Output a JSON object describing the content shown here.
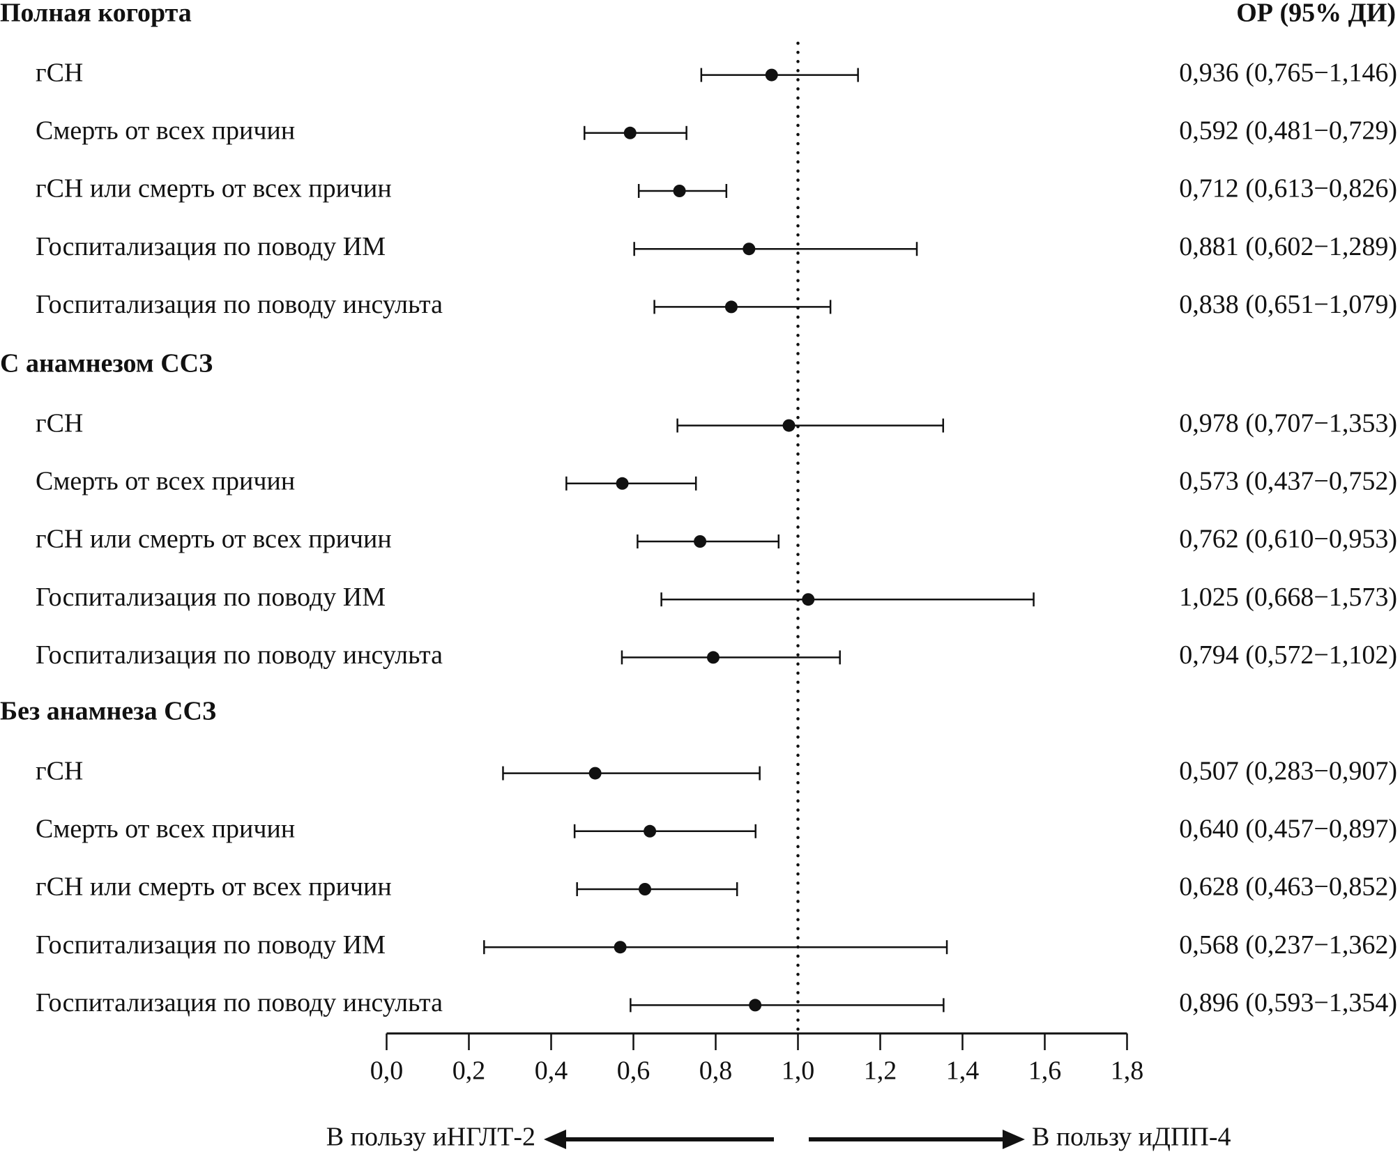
{
  "chart_data": {
    "type": "forest",
    "header_right": "ОР (95% ДИ)",
    "reference_line": 1.0,
    "xlim": [
      0.0,
      1.8
    ],
    "x_ticks": [
      "0,0",
      "0,2",
      "0,4",
      "0,6",
      "0,8",
      "1,0",
      "1,2",
      "1,4",
      "1,6",
      "1,8"
    ],
    "x_tick_values": [
      0,
      0.2,
      0.4,
      0.6,
      0.8,
      1.0,
      1.2,
      1.4,
      1.6,
      1.8
    ],
    "arrow_left_label": "В пользу иНГЛТ-2",
    "arrow_right_label": "В пользу иДПП-4",
    "groups": [
      {
        "title": "Полная когорта",
        "rows": [
          {
            "label": "гСН",
            "or": 0.936,
            "lo": 0.765,
            "hi": 1.146,
            "text": "0,936 (0,765−1,146)"
          },
          {
            "label": "Смерть от всех причин",
            "or": 0.592,
            "lo": 0.481,
            "hi": 0.729,
            "text": "0,592 (0,481−0,729)"
          },
          {
            "label": "гСН или смерть от всех причин",
            "or": 0.712,
            "lo": 0.613,
            "hi": 0.826,
            "text": "0,712 (0,613−0,826)"
          },
          {
            "label": "Госпитализация по поводу ИМ",
            "or": 0.881,
            "lo": 0.602,
            "hi": 1.289,
            "text": "0,881 (0,602−1,289)"
          },
          {
            "label": "Госпитализация по поводу инсульта",
            "or": 0.838,
            "lo": 0.651,
            "hi": 1.079,
            "text": "0,838 (0,651−1,079)"
          }
        ]
      },
      {
        "title": "С анамнезом ССЗ",
        "rows": [
          {
            "label": "гСН",
            "or": 0.978,
            "lo": 0.707,
            "hi": 1.353,
            "text": "0,978 (0,707−1,353)"
          },
          {
            "label": "Смерть от всех причин",
            "or": 0.573,
            "lo": 0.437,
            "hi": 0.752,
            "text": "0,573 (0,437−0,752)"
          },
          {
            "label": "гСН или смерть от всех причин",
            "or": 0.762,
            "lo": 0.61,
            "hi": 0.953,
            "text": "0,762 (0,610−0,953)"
          },
          {
            "label": "Госпитализация по поводу ИМ",
            "or": 1.025,
            "lo": 0.668,
            "hi": 1.573,
            "text": "1,025 (0,668−1,573)"
          },
          {
            "label": "Госпитализация по поводу инсульта",
            "or": 0.794,
            "lo": 0.572,
            "hi": 1.102,
            "text": "0,794 (0,572−1,102)"
          }
        ]
      },
      {
        "title": "Без анамнеза ССЗ",
        "rows": [
          {
            "label": "гСН",
            "or": 0.507,
            "lo": 0.283,
            "hi": 0.907,
            "text": "0,507 (0,283−0,907)"
          },
          {
            "label": "Смерть от всех причин",
            "or": 0.64,
            "lo": 0.457,
            "hi": 0.897,
            "text": "0,640 (0,457−0,897)"
          },
          {
            "label": "гСН или смерть от всех причин",
            "or": 0.628,
            "lo": 0.463,
            "hi": 0.852,
            "text": "0,628 (0,463−0,852)"
          },
          {
            "label": "Госпитализация по поводу ИМ",
            "or": 0.568,
            "lo": 0.237,
            "hi": 1.362,
            "text": "0,568 (0,237−1,362)"
          },
          {
            "label": "Госпитализация по поводу инсульта",
            "or": 0.896,
            "lo": 0.593,
            "hi": 1.354,
            "text": "0,896 (0,593−1,354)"
          }
        ]
      }
    ]
  }
}
